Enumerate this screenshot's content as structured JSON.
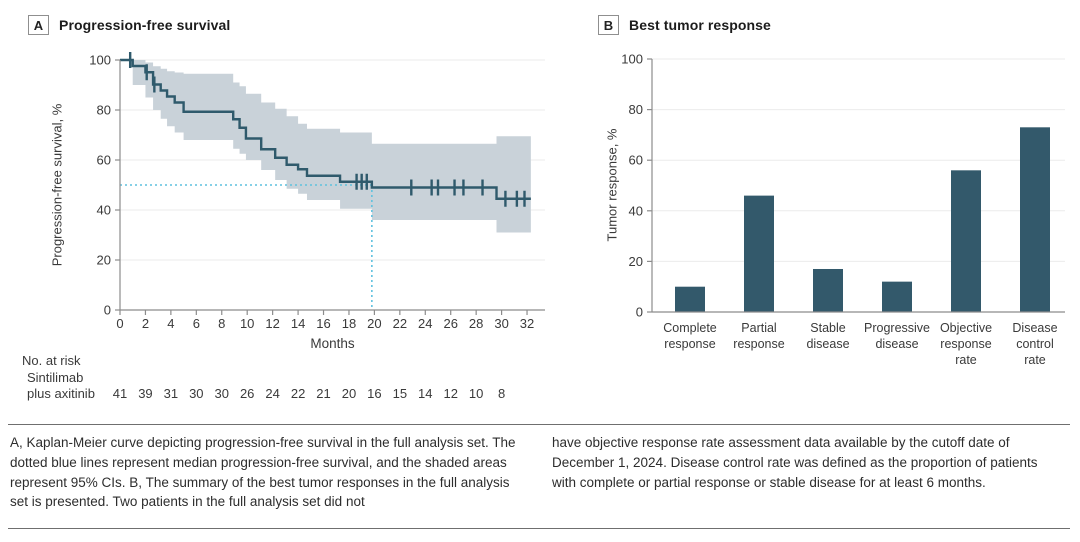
{
  "panelA": {
    "label": "A",
    "title": "Progression-free survival",
    "y_axis_title": "Progression-free survival, %",
    "x_axis_title": "Months",
    "risk_table": {
      "header": "No. at risk",
      "group_line1": "Sintilimab",
      "group_line2": "plus axitinib",
      "months": [
        0,
        2,
        4,
        6,
        8,
        10,
        12,
        14,
        16,
        18,
        20,
        22,
        24,
        26,
        28,
        30
      ],
      "values": [
        41,
        39,
        31,
        30,
        30,
        26,
        24,
        22,
        21,
        20,
        16,
        15,
        14,
        12,
        10,
        8
      ]
    }
  },
  "panelB": {
    "label": "B",
    "title": "Best tumor response",
    "y_axis_title": "Tumor response, %"
  },
  "caption": {
    "left": "A, Kaplan-Meier curve depicting progression-free survival in the full analysis set. The dotted blue lines represent median progression-free survival, and the shaded areas represent 95% CIs. B, The summary of the best tumor responses in the full analysis set is presented. Two patients in the full analysis set did not",
    "right": "have objective response rate assessment data available by the cutoff date of December 1, 2024. Disease control rate was defined as the proportion of patients with complete or partial response or stable disease for at least 6 months."
  },
  "colors": {
    "curve": "#2f5a6c",
    "ci_band": "#c9d2d9",
    "median_line": "#5fc1de",
    "bar": "#33596b",
    "axis": "#8c8c8c",
    "grid": "#ebebeb",
    "text": "#3a3a3a"
  },
  "chart_data": [
    {
      "type": "line",
      "subtype": "kaplan-meier-step",
      "title": "Progression-free survival",
      "xlabel": "Months",
      "ylabel": "Progression-free survival, %",
      "xlim": [
        0,
        32
      ],
      "ylim": [
        0,
        100
      ],
      "xticks": [
        0,
        2,
        4,
        6,
        8,
        10,
        12,
        14,
        16,
        18,
        20,
        22,
        24,
        26,
        28,
        30,
        32
      ],
      "yticks": [
        0,
        20,
        40,
        60,
        80,
        100
      ],
      "grid": true,
      "series_name": "Sintilimab plus axitinib",
      "steps": [
        [
          0.0,
          100
        ],
        [
          1.0,
          97.6
        ],
        [
          2.0,
          95.1
        ],
        [
          2.6,
          90.2
        ],
        [
          3.2,
          87.8
        ],
        [
          3.7,
          85.4
        ],
        [
          4.3,
          83.0
        ],
        [
          5.0,
          79.3
        ],
        [
          8.9,
          76.3
        ],
        [
          9.4,
          72.9
        ],
        [
          9.9,
          68.6
        ],
        [
          11.1,
          64.3
        ],
        [
          12.2,
          60.9
        ],
        [
          13.1,
          58.1
        ],
        [
          14.0,
          56.3
        ],
        [
          14.7,
          53.7
        ],
        [
          17.3,
          51.3
        ],
        [
          19.8,
          49.0
        ],
        [
          29.6,
          44.5
        ]
      ],
      "end_month": 32.3,
      "censor_marks": [
        [
          0.8,
          100
        ],
        [
          2.1,
          95.1
        ],
        [
          2.7,
          90.2
        ],
        [
          18.6,
          51.3
        ],
        [
          19.0,
          51.3
        ],
        [
          19.4,
          51.3
        ],
        [
          22.9,
          49.0
        ],
        [
          24.5,
          49.0
        ],
        [
          25.0,
          49.0
        ],
        [
          26.3,
          49.0
        ],
        [
          27.0,
          49.0
        ],
        [
          28.5,
          49.0
        ],
        [
          30.3,
          44.5
        ],
        [
          31.2,
          44.5
        ],
        [
          31.8,
          44.5
        ]
      ],
      "ci_band": [
        [
          0.0,
          100,
          100
        ],
        [
          1.0,
          90,
          100
        ],
        [
          2.0,
          85,
          99
        ],
        [
          2.6,
          80,
          97.5
        ],
        [
          3.2,
          76.5,
          96.5
        ],
        [
          3.7,
          73.5,
          95.5
        ],
        [
          4.3,
          71,
          95
        ],
        [
          5.0,
          68,
          94.5
        ],
        [
          8.9,
          64.5,
          91
        ],
        [
          9.4,
          62.5,
          89.5
        ],
        [
          9.9,
          60,
          86.5
        ],
        [
          11.1,
          56,
          83
        ],
        [
          12.2,
          52,
          80.5
        ],
        [
          13.1,
          48.5,
          77.5
        ],
        [
          14.0,
          46.5,
          74.5
        ],
        [
          14.7,
          44,
          72.5
        ],
        [
          17.3,
          40.5,
          71
        ],
        [
          19.8,
          36,
          66.5
        ],
        [
          29.6,
          31,
          69.5
        ]
      ],
      "median_months": 19.8,
      "median_value": 50,
      "no_at_risk": {
        "months": [
          0,
          2,
          4,
          6,
          8,
          10,
          12,
          14,
          16,
          18,
          20,
          22,
          24,
          26,
          28,
          30
        ],
        "values": [
          41,
          39,
          31,
          30,
          30,
          26,
          24,
          22,
          21,
          20,
          16,
          15,
          14,
          12,
          10,
          8
        ]
      }
    },
    {
      "type": "bar",
      "title": "Best tumor response",
      "ylabel": "Tumor response, %",
      "ylim": [
        0,
        100
      ],
      "yticks": [
        0,
        20,
        40,
        60,
        80,
        100
      ],
      "grid": true,
      "categories": [
        "Complete response",
        "Partial response",
        "Stable disease",
        "Progressive disease",
        "Objective response rate",
        "Disease control rate"
      ],
      "category_lines": [
        [
          "Complete",
          "response"
        ],
        [
          "Partial",
          "response"
        ],
        [
          "Stable",
          "disease"
        ],
        [
          "Progressive",
          "disease"
        ],
        [
          "Objective",
          "response",
          "rate"
        ],
        [
          "Disease",
          "control",
          "rate"
        ]
      ],
      "values": [
        10,
        46,
        17,
        12,
        56,
        73
      ]
    }
  ]
}
